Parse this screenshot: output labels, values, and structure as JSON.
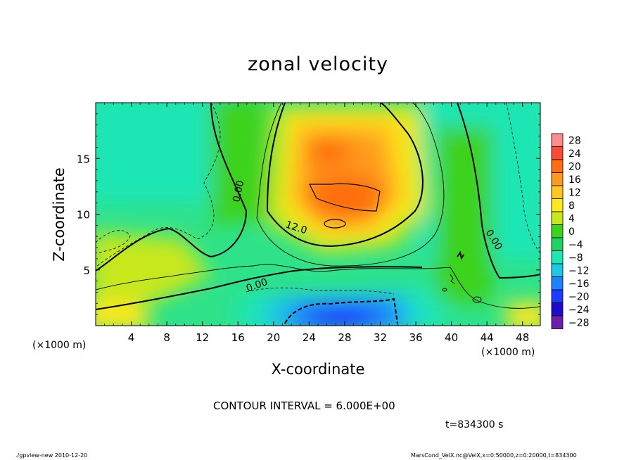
{
  "chart_data": {
    "type": "heatmap",
    "title": "zonal velocity",
    "xlabel": "X-coordinate",
    "ylabel": "Z-coordinate",
    "x_unit": "(×1000 m)",
    "xlim": [
      0,
      50
    ],
    "ylim": [
      0,
      20
    ],
    "x_ticks": [
      4,
      8,
      12,
      16,
      20,
      24,
      28,
      32,
      36,
      40,
      44,
      48
    ],
    "y_ticks": [
      5,
      10,
      15
    ],
    "contour_interval_text": "CONTOUR INTERVAL = 6.000E+00",
    "contour_labels": [
      "0.00",
      "12.0",
      "0.00",
      "0.00"
    ],
    "colorbar": {
      "levels": [
        28,
        24,
        20,
        16,
        12,
        8,
        4,
        0,
        -4,
        -8,
        -12,
        -16,
        -20,
        -24,
        -28
      ],
      "colors": [
        "#ff8c8c",
        "#ff4a3a",
        "#ff6e10",
        "#ff9a1e",
        "#ffc81e",
        "#ffe81e",
        "#c8e81e",
        "#3cd21e",
        "#1ed264",
        "#1ee6b4",
        "#1ec8e6",
        "#1e82ff",
        "#1e3cff",
        "#1e0ac8",
        "#6e1eaa"
      ]
    },
    "time_label": "t=834300 s"
  },
  "footer": {
    "left": "./gpview-new  2010-12-20",
    "right": "MarsCond_VelX.nc@VelX,x=0:50000,z=0:20000,t=834300"
  }
}
